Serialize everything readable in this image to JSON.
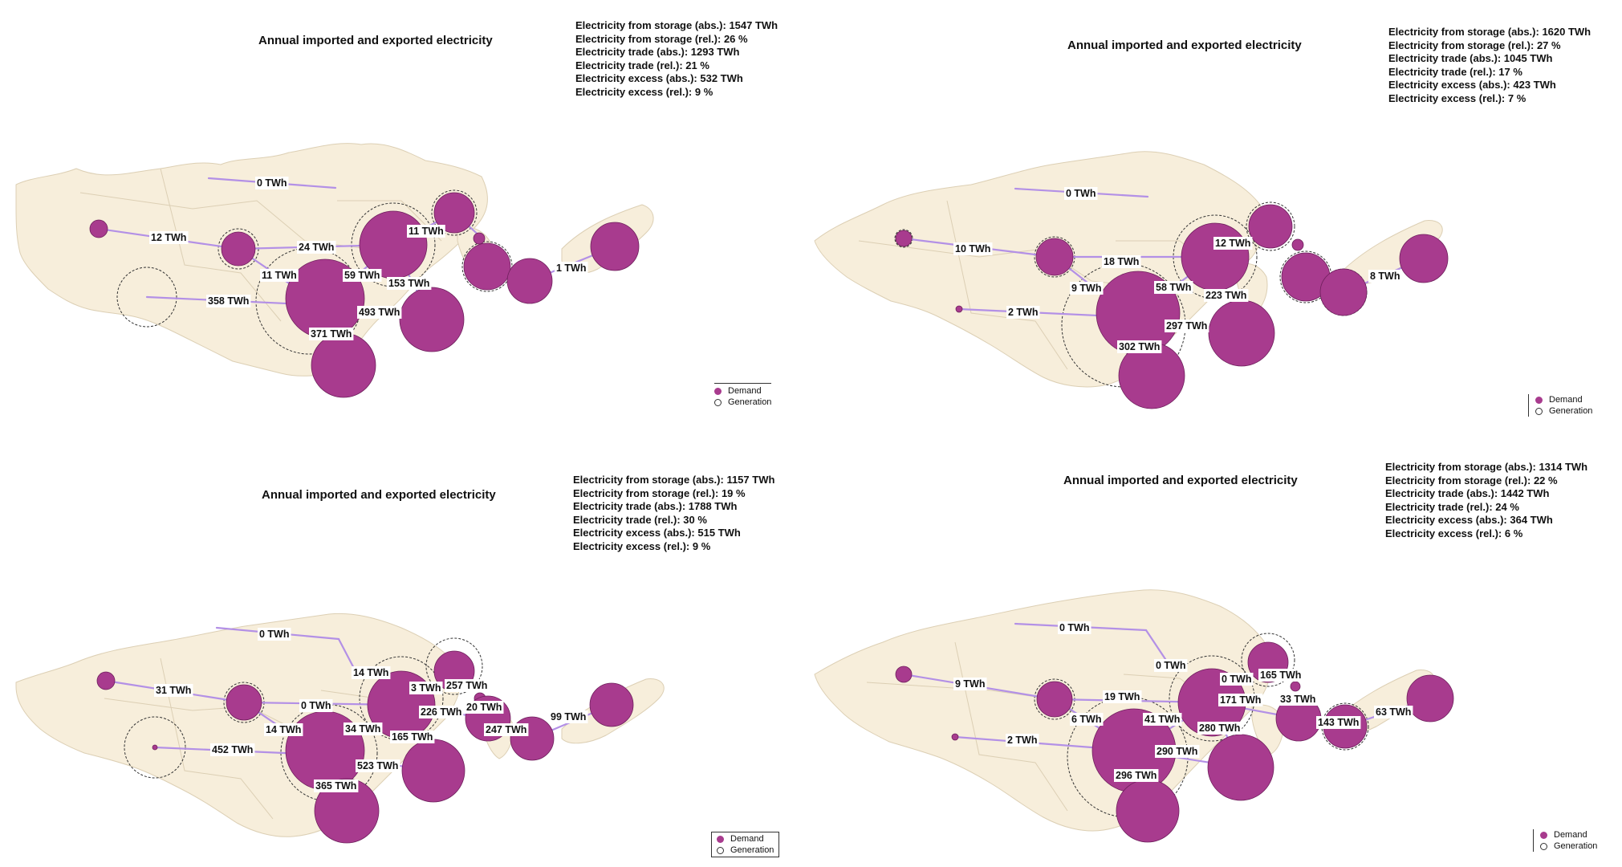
{
  "colors": {
    "land": "#f7eedb",
    "border": "#dccfb4",
    "demand": "#a83b8e",
    "flow": "#b390e6",
    "generation_ring": "#333333"
  },
  "legend": {
    "demand": "Demand",
    "generation": "Generation"
  },
  "panels": [
    {
      "title": "Annual imported and exported electricity",
      "stats": [
        "Electricity from storage (abs.): 1547 TWh",
        "Electricity from storage (rel.): 26 %",
        "Electricity trade (abs.): 1293 TWh",
        "Electricity trade (rel.): 21 %",
        "Electricity excess (abs.): 532 TWh",
        "Electricity excess (rel.): 9 %"
      ],
      "flow_labels": [
        "0 TWh",
        "12 TWh",
        "24 TWh",
        "11 TWh",
        "11 TWh",
        "59 TWh",
        "153 TWh",
        "358 TWh",
        "493 TWh",
        "371 TWh",
        "1 TWh"
      ]
    },
    {
      "title": "Annual imported and exported electricity",
      "stats": [
        "Electricity from storage (abs.): 1620 TWh",
        "Electricity from storage (rel.): 27 %",
        "Electricity trade (abs.): 1045 TWh",
        "Electricity trade (rel.): 17 %",
        "Electricity excess (abs.): 423 TWh",
        "Electricity excess (rel.): 7 %"
      ],
      "flow_labels": [
        "0 TWh",
        "10 TWh",
        "18 TWh",
        "12 TWh",
        "9 TWh",
        "58 TWh",
        "223 TWh",
        "2 TWh",
        "297 TWh",
        "302 TWh",
        "8 TWh"
      ]
    },
    {
      "title": "Annual imported and exported electricity",
      "stats": [
        "Electricity from storage (abs.): 1157 TWh",
        "Electricity from storage (rel.): 19 %",
        "Electricity trade (abs.): 1788 TWh",
        "Electricity trade (rel.): 30 %",
        "Electricity excess (abs.): 515 TWh",
        "Electricity excess (rel.): 9 %"
      ],
      "flow_labels": [
        "0 TWh",
        "14 TWh",
        "31 TWh",
        "0 TWh",
        "3 TWh",
        "257 TWh",
        "20 TWh",
        "226 TWh",
        "14 TWh",
        "34 TWh",
        "165 TWh",
        "247 TWh",
        "99 TWh",
        "452 TWh",
        "523 TWh",
        "365 TWh"
      ]
    },
    {
      "title": "Annual imported and exported electricity",
      "stats": [
        "Electricity from storage (abs.): 1314 TWh",
        "Electricity from storage (rel.): 22 %",
        "Electricity trade (abs.): 1442 TWh",
        "Electricity trade (rel.): 24 %",
        "Electricity excess (abs.): 364 TWh",
        "Electricity excess (rel.): 6 %"
      ],
      "flow_labels": [
        "0 TWh",
        "0 TWh",
        "0 TWh",
        "165 TWh",
        "9 TWh",
        "19 TWh",
        "171 TWh",
        "33 TWh",
        "143 TWh",
        "63 TWh",
        "6 TWh",
        "41 TWh",
        "280 TWh",
        "2 TWh",
        "290 TWh",
        "296 TWh"
      ]
    }
  ]
}
